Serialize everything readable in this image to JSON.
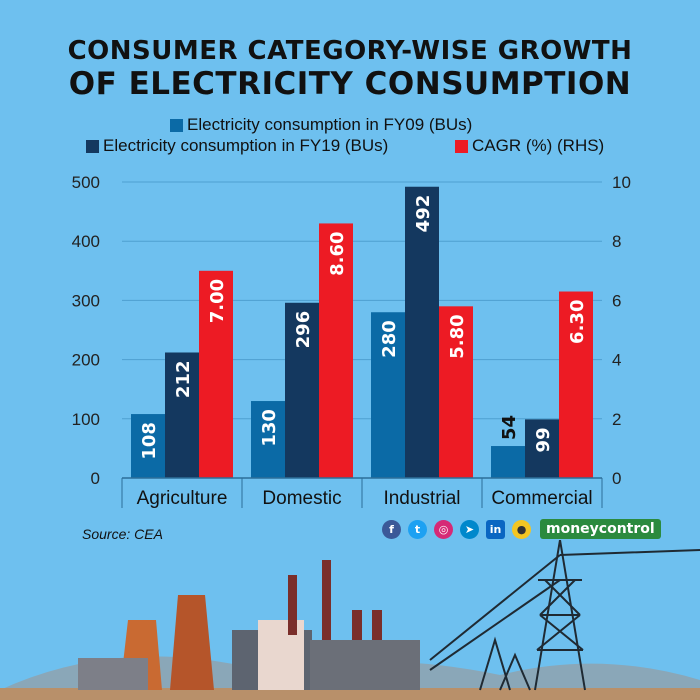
{
  "chart_data": {
    "type": "bar",
    "title": "CONSUMER CATEGORY-WISE GROWTH",
    "subtitle": "OF ELECTRICITY CONSUMPTION",
    "categories": [
      "Agriculture",
      "Domestic",
      "Industrial",
      "Commercial"
    ],
    "series": [
      {
        "name": "Electricity consumption in FY09 (BUs)",
        "axis": "left",
        "color": "#0b6aa6",
        "values": [
          108,
          130,
          280,
          54
        ],
        "labels": [
          "108",
          "130",
          "280",
          "54"
        ]
      },
      {
        "name": "Electricity consumption in FY19 (BUs)",
        "axis": "left",
        "color": "#14385f",
        "values": [
          212,
          296,
          492,
          99
        ],
        "labels": [
          "212",
          "296",
          "492",
          "99"
        ]
      },
      {
        "name": "CAGR (%) (RHS)",
        "axis": "right",
        "color": "#ed1b24",
        "values": [
          7.0,
          8.6,
          5.8,
          6.3
        ],
        "labels": [
          "7.00",
          "8.60",
          "5.80",
          "6.30"
        ]
      }
    ],
    "ylim_left": [
      0,
      500
    ],
    "yticks_left": [
      "0",
      "100",
      "200",
      "300",
      "400",
      "500"
    ],
    "ylim_right": [
      0,
      10
    ],
    "yticks_right": [
      "0",
      "2",
      "4",
      "6",
      "8",
      "10"
    ],
    "grid": true,
    "legend_position": "top"
  },
  "source": "Source: CEA",
  "brand": "moneycontrol",
  "social_icons": [
    "facebook-icon",
    "twitter-icon",
    "instagram-icon",
    "telegram-icon",
    "linkedin-icon",
    "koo-icon"
  ],
  "colors": {
    "background": "#6ec0ef",
    "fy09": "#0b6aa6",
    "fy19": "#14385f",
    "cagr": "#ed1b24",
    "brand_green": "#2b8a3e"
  }
}
